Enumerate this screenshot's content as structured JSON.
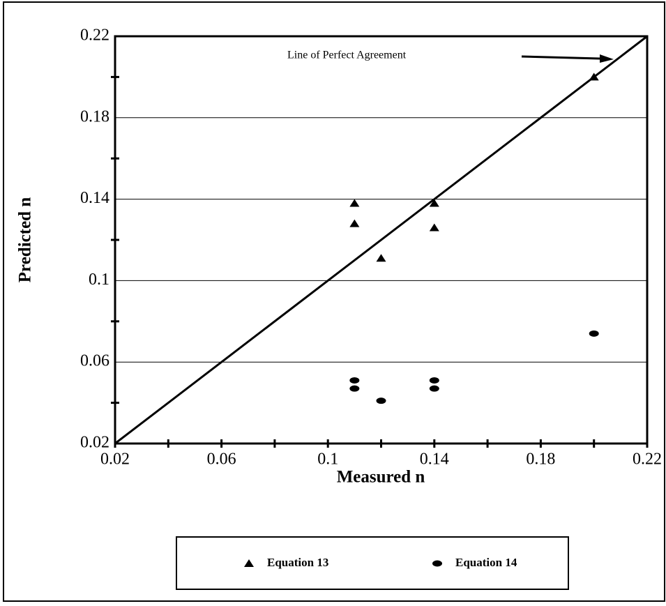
{
  "chart_data": {
    "type": "scatter",
    "xlabel": "Measured n",
    "ylabel": "Predicted n",
    "xlim": [
      0.02,
      0.22
    ],
    "ylim": [
      0.02,
      0.22
    ],
    "xticks": [
      0.02,
      0.06,
      0.1,
      0.14,
      0.18,
      0.22
    ],
    "yticks": [
      0.02,
      0.06,
      0.1,
      0.14,
      0.18,
      0.22
    ],
    "xminorticks": [
      0.04,
      0.08,
      0.12,
      0.16,
      0.2
    ],
    "yminorticks": [
      0.04,
      0.08,
      0.12,
      0.16,
      0.2
    ],
    "grid": true,
    "reference_line": {
      "label": "Line of Perfect Agreement",
      "x": [
        0.02,
        0.22
      ],
      "y": [
        0.02,
        0.22
      ],
      "color": "#000000"
    },
    "series": [
      {
        "name": "Equation 13",
        "marker": "triangle",
        "color": "#000000",
        "x": [
          0.11,
          0.11,
          0.12,
          0.14,
          0.14,
          0.2
        ],
        "values": [
          0.138,
          0.128,
          0.111,
          0.138,
          0.126,
          0.2
        ]
      },
      {
        "name": "Equation 14",
        "marker": "circle",
        "color": "#000000",
        "x": [
          0.11,
          0.11,
          0.12,
          0.14,
          0.14,
          0.2
        ],
        "values": [
          0.051,
          0.047,
          0.041,
          0.051,
          0.047,
          0.074
        ]
      }
    ]
  }
}
